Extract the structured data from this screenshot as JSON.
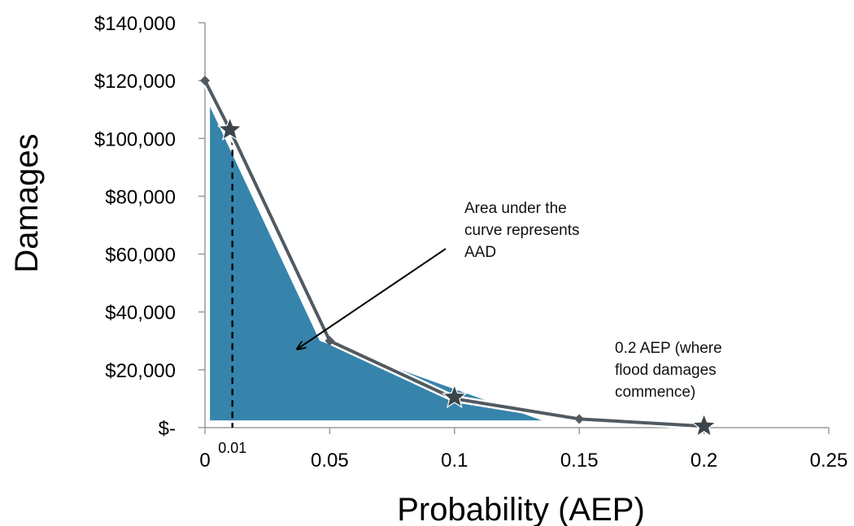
{
  "chart_data": {
    "type": "line",
    "title": "",
    "xlabel": "Probability (AEP)",
    "ylabel": "Damages",
    "xlim": [
      0,
      0.25
    ],
    "ylim": [
      0,
      140000
    ],
    "x_ticks": [
      0,
      0.05,
      0.1,
      0.15,
      0.2,
      0.25
    ],
    "x_tick_labels": [
      "0",
      "0.05",
      "0.1",
      "0.15",
      "0.2",
      "0.25"
    ],
    "y_ticks": [
      0,
      20000,
      40000,
      60000,
      80000,
      100000,
      120000,
      140000
    ],
    "y_tick_labels": [
      "$-",
      "$20,000",
      "$40,000",
      "$60,000",
      "$80,000",
      "$100,000",
      "$120,000",
      "$140,000"
    ],
    "grid": false,
    "series": [
      {
        "x": [
          0,
          0.01,
          0.05,
          0.1,
          0.15,
          0.2
        ],
        "y": [
          120000,
          103000,
          30000,
          10000,
          3000,
          500
        ],
        "line_color": "#515a61",
        "marker": "diamond"
      }
    ],
    "star_points": [
      {
        "x": 0.01,
        "y": 103000
      },
      {
        "x": 0.1,
        "y": 10500
      },
      {
        "x": 0.2,
        "y": 500
      }
    ],
    "shaded_area": {
      "description_label": "AAD",
      "color": "#3684ab",
      "polygon": [
        [
          0.002,
          111000
        ],
        [
          0.046,
          30000
        ],
        [
          0.135,
          2500
        ],
        [
          0.002,
          2500
        ]
      ]
    },
    "reference_line": {
      "x": 0.011,
      "label": "0.01"
    },
    "annotations": [
      {
        "id": "aad",
        "lines": [
          "Area under the",
          "curve represents",
          "AAD"
        ]
      },
      {
        "id": "aep",
        "lines": [
          "0.2 AEP (where",
          "flood damages",
          "commence)"
        ]
      }
    ]
  }
}
